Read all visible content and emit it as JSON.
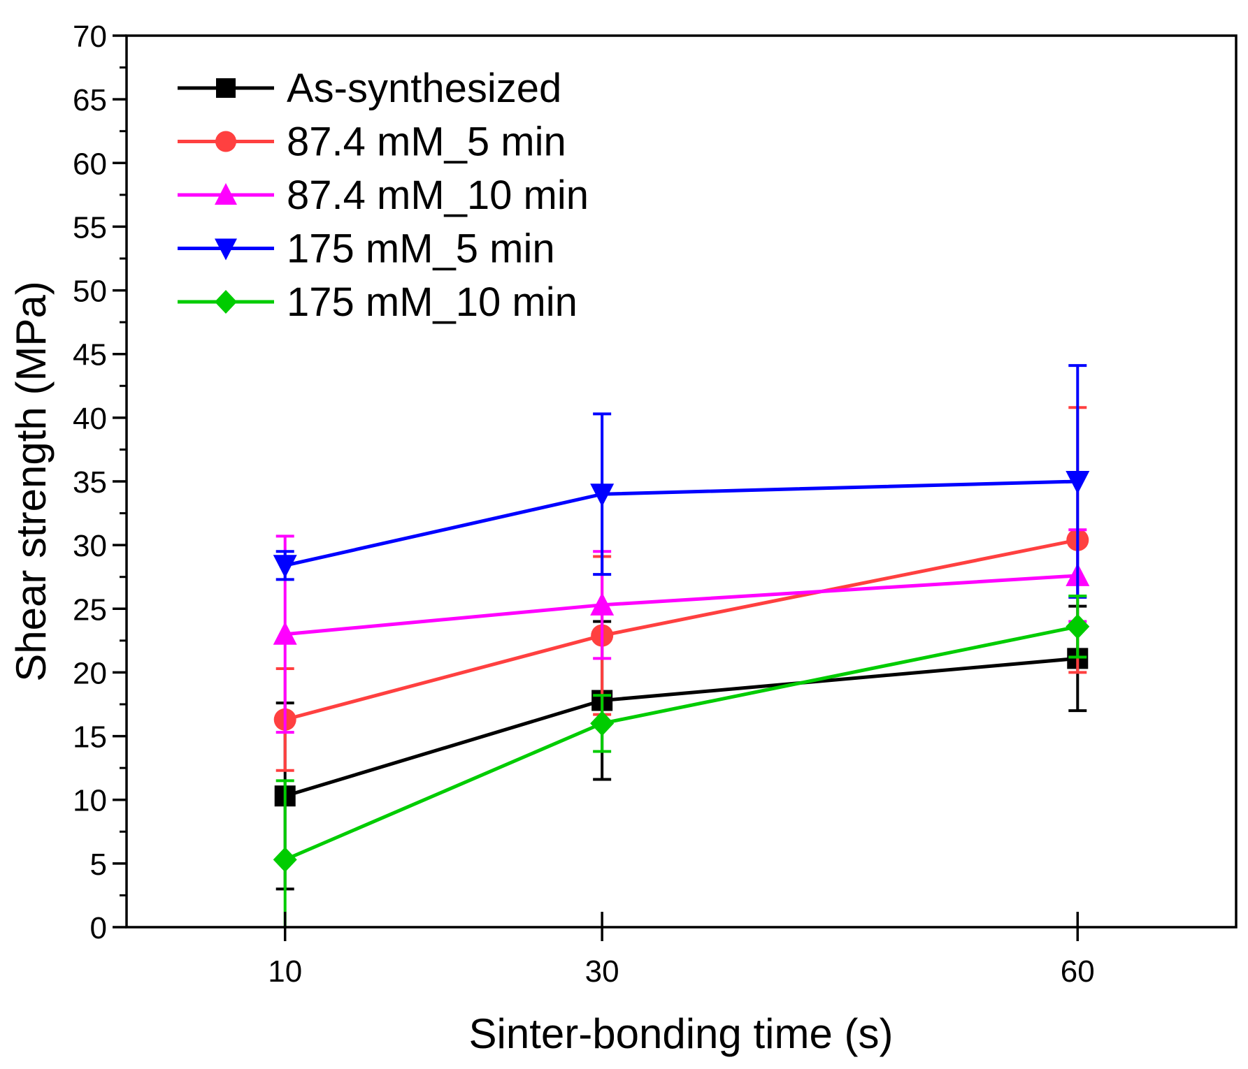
{
  "chart_data": {
    "type": "line",
    "title": "",
    "xlabel": "Sinter-bonding time (s)",
    "ylabel": "Shear strength (MPa)",
    "xlim": [
      0,
      70
    ],
    "ylim": [
      0,
      70
    ],
    "x_ticks": [
      10,
      30,
      60
    ],
    "y_ticks": [
      0,
      5,
      10,
      15,
      20,
      25,
      30,
      35,
      40,
      45,
      50,
      55,
      60,
      65,
      70
    ],
    "grid": false,
    "legend_position": "top-left",
    "x": [
      10,
      30,
      60
    ],
    "series": [
      {
        "name": "As-synthesized",
        "color": "#000000",
        "marker": "square",
        "values": [
          10.3,
          17.8,
          21.1
        ],
        "errors": [
          7.3,
          6.2,
          4.1
        ]
      },
      {
        "name": "87.4 mM_5 min",
        "color": "#ff4040",
        "marker": "circle",
        "values": [
          16.3,
          22.9,
          30.4
        ],
        "errors": [
          4.0,
          6.2,
          10.4
        ]
      },
      {
        "name": "87.4 mM_10 min",
        "color": "#ff00ff",
        "marker": "triangle-up",
        "values": [
          23.0,
          25.3,
          27.6
        ],
        "errors": [
          7.7,
          4.2,
          3.6
        ]
      },
      {
        "name": "175 mM_5 min",
        "color": "#0000ff",
        "marker": "triangle-down",
        "values": [
          28.4,
          34.0,
          35.0
        ],
        "errors": [
          1.1,
          6.3,
          9.1
        ]
      },
      {
        "name": "175 mM_10 min",
        "color": "#00cc00",
        "marker": "diamond",
        "values": [
          5.3,
          16.0,
          23.6
        ],
        "errors": [
          6.2,
          2.2,
          2.4
        ]
      }
    ]
  }
}
